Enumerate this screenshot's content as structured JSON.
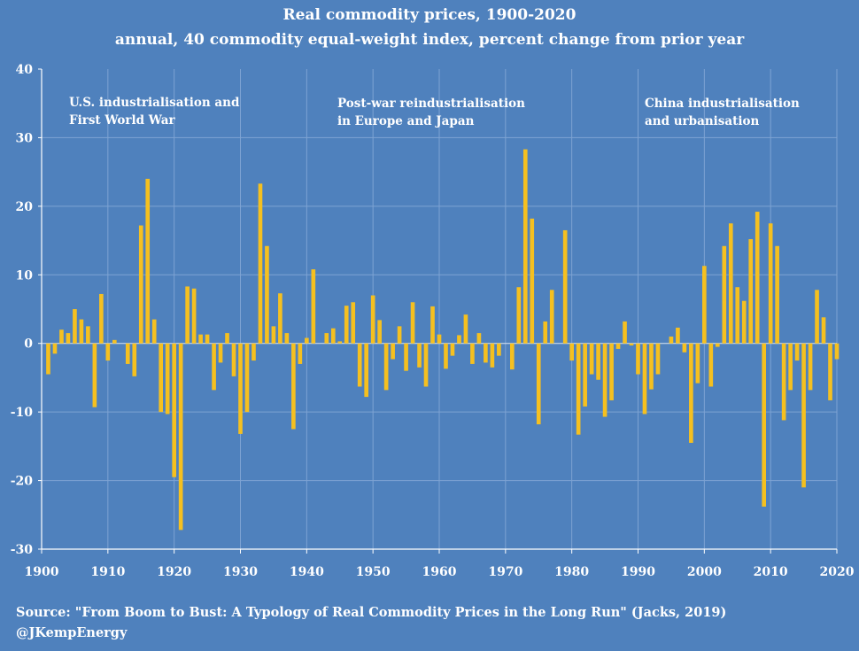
{
  "chart_data": {
    "type": "bar",
    "title": "Real commodity prices, 1900-2020",
    "subtitle": "annual, 40 commodity equal-weight index, percent change from prior year",
    "xlabel": "",
    "ylabel": "",
    "xlim": [
      1900,
      2020
    ],
    "ylim": [
      -30,
      40
    ],
    "yticks": [
      40,
      30,
      20,
      10,
      0,
      -10,
      -20,
      -30
    ],
    "xticks": [
      1900,
      1910,
      1920,
      1930,
      1940,
      1950,
      1960,
      1970,
      1980,
      1990,
      2000,
      2010,
      2020
    ],
    "grid": true,
    "bar_color": "#f5c020",
    "background_color": "#4f81bd",
    "annotations": [
      {
        "lines": [
          "U.S. industrialisation and",
          "First World War"
        ]
      },
      {
        "lines": [
          "Post-war reindustrialisation",
          "in Europe and Japan"
        ]
      },
      {
        "lines": [
          "China industrialisation",
          "and urbanisation"
        ]
      }
    ],
    "years": [
      1901,
      1902,
      1903,
      1904,
      1905,
      1906,
      1907,
      1908,
      1909,
      1910,
      1911,
      1912,
      1913,
      1914,
      1915,
      1916,
      1917,
      1918,
      1919,
      1920,
      1921,
      1922,
      1923,
      1924,
      1925,
      1926,
      1927,
      1928,
      1929,
      1930,
      1931,
      1932,
      1933,
      1934,
      1935,
      1936,
      1937,
      1938,
      1939,
      1940,
      1941,
      1942,
      1943,
      1944,
      1945,
      1946,
      1947,
      1948,
      1949,
      1950,
      1951,
      1952,
      1953,
      1954,
      1955,
      1956,
      1957,
      1958,
      1959,
      1960,
      1961,
      1962,
      1963,
      1964,
      1965,
      1966,
      1967,
      1968,
      1969,
      1970,
      1971,
      1972,
      1973,
      1974,
      1975,
      1976,
      1977,
      1978,
      1979,
      1980,
      1981,
      1982,
      1983,
      1984,
      1985,
      1986,
      1987,
      1988,
      1989,
      1990,
      1991,
      1992,
      1993,
      1994,
      1995,
      1996,
      1997,
      1998,
      1999,
      2000,
      2001,
      2002,
      2003,
      2004,
      2005,
      2006,
      2007,
      2008,
      2009,
      2010,
      2011,
      2012,
      2013,
      2014,
      2015,
      2016,
      2017,
      2018,
      2019,
      2020
    ],
    "values": [
      -4.5,
      -1.5,
      2.0,
      1.5,
      5.0,
      3.5,
      2.5,
      -9.3,
      7.2,
      -2.5,
      0.5,
      0,
      -3.0,
      -4.8,
      17.2,
      24.0,
      3.5,
      -10.0,
      -10.3,
      -19.5,
      -27.2,
      8.3,
      8.0,
      1.3,
      1.3,
      -6.8,
      -2.8,
      1.5,
      -4.8,
      -13.2,
      -10.0,
      -2.5,
      23.3,
      14.2,
      2.5,
      7.3,
      1.5,
      -12.5,
      -3.0,
      0.8,
      10.8,
      0,
      1.5,
      2.2,
      0.3,
      5.5,
      6.0,
      -6.3,
      -7.8,
      7.0,
      3.4,
      -6.8,
      -2.3,
      2.5,
      -4.0,
      6.0,
      -3.5,
      -6.3,
      5.4,
      1.3,
      -3.7,
      -1.8,
      1.2,
      4.2,
      -3.0,
      1.5,
      -2.8,
      -3.5,
      -1.8,
      0,
      -3.8,
      8.2,
      28.3,
      18.2,
      -11.8,
      3.2,
      7.8,
      0,
      16.5,
      -2.5,
      -13.3,
      -9.2,
      -4.5,
      -5.3,
      -10.7,
      -8.3,
      -0.8,
      3.2,
      -0.3,
      -4.5,
      -10.3,
      -6.7,
      -4.5,
      0,
      1.0,
      2.3,
      -1.3,
      -14.5,
      -5.8,
      11.3,
      -6.3,
      -0.5,
      14.2,
      17.5,
      8.2,
      6.2,
      15.2,
      19.2,
      -23.8,
      17.5,
      14.2,
      -11.2,
      -6.8,
      -2.5,
      -21.0,
      -6.8,
      7.8,
      3.8,
      -8.3,
      -2.3
    ]
  },
  "source": {
    "line1": "Source: \"From Boom to Bust: A Typology of Real Commodity Prices in the Long Run\" (Jacks, 2019)",
    "line2": "@JKempEnergy"
  }
}
